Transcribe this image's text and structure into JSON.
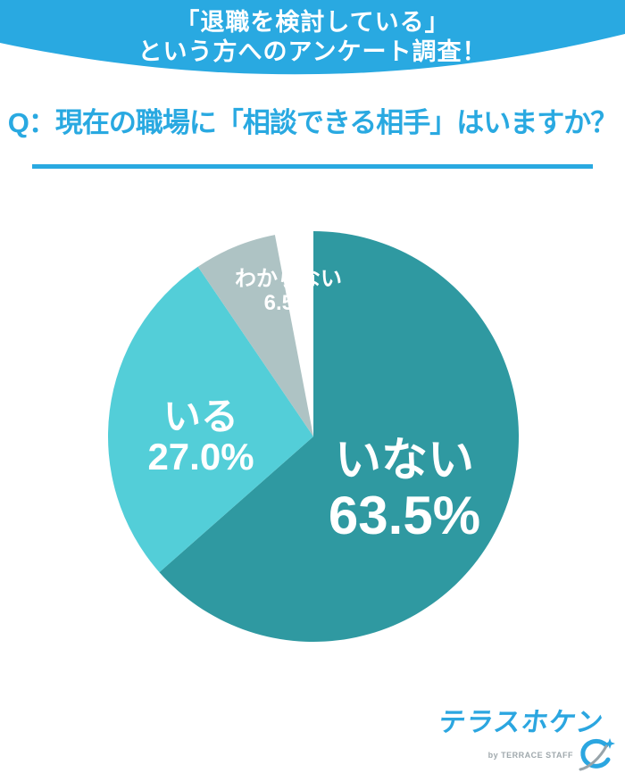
{
  "banner": {
    "line1": "「退職を検討している」",
    "line2": "という方へのアンケート調査！",
    "bg_color": "#29A9E1"
  },
  "question": {
    "text": "Q：現在の職場に「相談できる相手」はいますか？",
    "color": "#29A9E1"
  },
  "chart_data": {
    "type": "pie",
    "title": "現在の職場に「相談できる相手」はいますか？",
    "start_angle_deg": 0,
    "direction": "clockwise",
    "legend_position": "labels-inside",
    "slices": [
      {
        "label": "いない",
        "value_pct": 63.5,
        "value_label": "63.5%",
        "color": "#2F99A1"
      },
      {
        "label": "いる",
        "value_pct": 27.0,
        "value_label": "27.0%",
        "color": "#53CED8"
      },
      {
        "label": "わからない",
        "value_pct": 6.5,
        "value_label": "6.5%",
        "color": "#AEC3C4"
      }
    ]
  },
  "logo": {
    "brand": "テラスホケン",
    "byline": "by TERRACE STAFF",
    "brand_color": "#2BA6E0",
    "mark": "orbit-swoosh-icon"
  }
}
